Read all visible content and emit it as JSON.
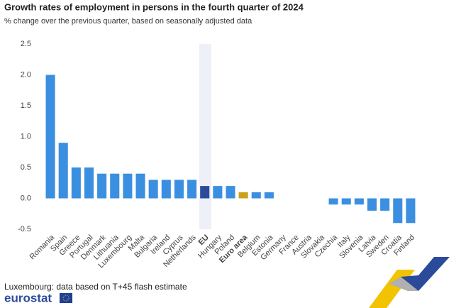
{
  "chart_data": {
    "type": "bar",
    "title": "Growth rates of employment in persons in the fourth quarter of 2024",
    "subtitle": "% change over the previous quarter, based on seasonally adjusted data",
    "categories": [
      "Romania",
      "Spain",
      "Greece",
      "Portugal",
      "Denmark",
      "Lithuania",
      "Luxembourg",
      "Malta",
      "Bulgaria",
      "Ireland",
      "Cyprus",
      "Netherlands",
      "EU",
      "Hungary",
      "Poland",
      "Euro area",
      "Belgium",
      "Estonia",
      "Germany",
      "France",
      "Austria",
      "Slovakia",
      "Czechia",
      "Italy",
      "Slovenia",
      "Latvia",
      "Sweden",
      "Croatia",
      "Finland"
    ],
    "values": [
      2.0,
      0.9,
      0.5,
      0.5,
      0.4,
      0.4,
      0.4,
      0.4,
      0.3,
      0.3,
      0.3,
      0.3,
      0.2,
      0.2,
      0.2,
      0.1,
      0.1,
      0.1,
      0.0,
      0.0,
      0.0,
      0.0,
      -0.1,
      -0.1,
      -0.1,
      -0.2,
      -0.2,
      -0.4,
      -0.4
    ],
    "color": "#3b8fe0",
    "colors": [
      "#3b8fe0",
      "#3b8fe0",
      "#3b8fe0",
      "#3b8fe0",
      "#3b8fe0",
      "#3b8fe0",
      "#3b8fe0",
      "#3b8fe0",
      "#3b8fe0",
      "#3b8fe0",
      "#3b8fe0",
      "#3b8fe0",
      "#2b4a9a",
      "#3b8fe0",
      "#3b8fe0",
      "#c8a21a",
      "#3b8fe0",
      "#3b8fe0",
      "#3b8fe0",
      "#3b8fe0",
      "#3b8fe0",
      "#3b8fe0",
      "#3b8fe0",
      "#3b8fe0",
      "#3b8fe0",
      "#3b8fe0",
      "#3b8fe0",
      "#3b8fe0",
      "#3b8fe0"
    ],
    "ylim": [
      -0.5,
      2.5
    ],
    "yticks": [
      -0.5,
      {
        "value": 0,
        "label": "0.0"
      },
      0.5,
      {
        "value": 1,
        "label": "1.0"
      },
      1.5,
      {
        "value": 2,
        "label": "2.0"
      },
      2.5
    ],
    "grid": false,
    "footnote": "Luxembourg: data based on T+45 flash estimate",
    "source": "eurostat"
  }
}
